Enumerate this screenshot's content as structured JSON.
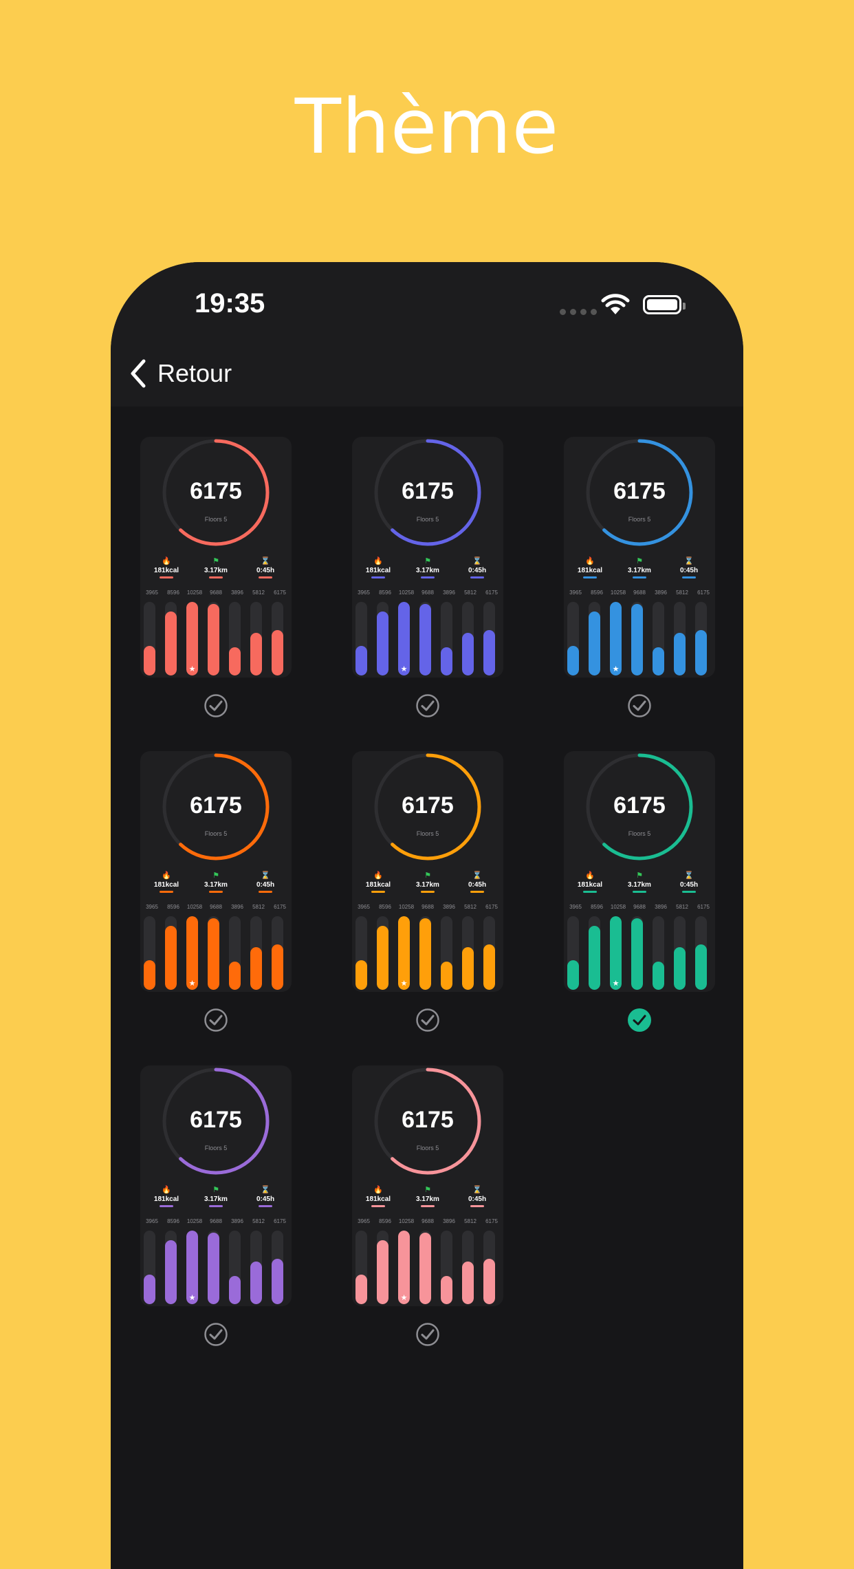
{
  "headline": "Thème",
  "status_bar": {
    "time": "19:35"
  },
  "nav": {
    "back_label": "Retour"
  },
  "widget": {
    "steps": "6175",
    "floors": "Floors 5",
    "stats": [
      {
        "icon": "flame-icon",
        "value": "181kcal"
      },
      {
        "icon": "distance-icon",
        "value": "3.17km"
      },
      {
        "icon": "hourglass-icon",
        "value": "0:45h"
      }
    ],
    "days": [
      "3965",
      "8596",
      "10258",
      "9688",
      "3896",
      "5812",
      "6175"
    ],
    "bar_fractions": [
      0.4,
      0.87,
      1.0,
      0.97,
      0.38,
      0.58,
      0.62
    ],
    "star_index": 2,
    "ring_fraction": 0.62
  },
  "themes": [
    {
      "color": "#F76A5E",
      "selected": false
    },
    {
      "color": "#6464E8",
      "selected": false
    },
    {
      "color": "#3492E0",
      "selected": false
    },
    {
      "color": "#FF6B0A",
      "selected": false
    },
    {
      "color": "#FF9F0A",
      "selected": false
    },
    {
      "color": "#1ABD92",
      "selected": true
    },
    {
      "color": "#9A6BD9",
      "selected": false
    },
    {
      "color": "#F7949A",
      "selected": false
    }
  ]
}
